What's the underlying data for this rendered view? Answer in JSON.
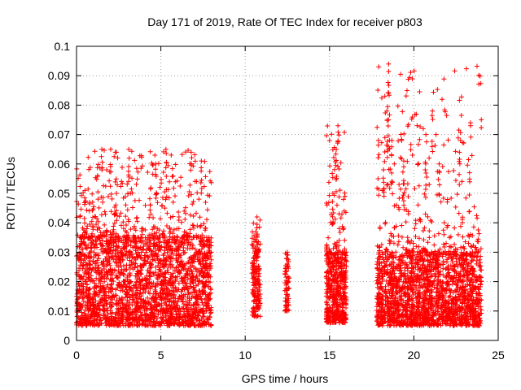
{
  "chart_data": {
    "type": "scatter",
    "title": "Day 171 of 2019, Rate Of TEC Index for receiver p803",
    "xlabel": "GPS time / hours",
    "ylabel": "ROTI / TECUs",
    "xlim": [
      0,
      25
    ],
    "ylim": [
      0,
      0.1
    ],
    "xticks": [
      "0",
      "5",
      "10",
      "15",
      "20",
      "25"
    ],
    "yticks": [
      "0",
      "0.01",
      "0.02",
      "0.03",
      "0.04",
      "0.05",
      "0.06",
      "0.07",
      "0.08",
      "0.09",
      "0.1"
    ],
    "grid": true,
    "legend": "none",
    "marker": "plus",
    "color": "#ff0000",
    "series": [
      {
        "clusters": [
          {
            "x_range": [
              0.0,
              8.0
            ],
            "y_typical": [
              0.005,
              0.035
            ],
            "y_max": 0.065,
            "points": 2600
          },
          {
            "x_range": [
              10.4,
              10.9
            ],
            "y_typical": [
              0.008,
              0.03
            ],
            "y_max": 0.042,
            "points": 170
          },
          {
            "x_range": [
              12.35,
              12.6
            ],
            "y_typical": [
              0.01,
              0.025
            ],
            "y_max": 0.03,
            "points": 70
          },
          {
            "x_range": [
              14.8,
              16.0
            ],
            "y_typical": [
              0.006,
              0.03
            ],
            "y_max": 0.073,
            "points": 520
          },
          {
            "x_range": [
              17.8,
              24.0
            ],
            "y_typical": [
              0.005,
              0.03
            ],
            "y_max": 0.094,
            "points": 2100
          }
        ],
        "peaks": [
          {
            "x": 1.5,
            "y": 0.065
          },
          {
            "x": 3.1,
            "y": 0.065
          },
          {
            "x": 5.3,
            "y": 0.065
          },
          {
            "x": 6.8,
            "y": 0.064
          },
          {
            "x": 7.4,
            "y": 0.061
          },
          {
            "x": 0.5,
            "y": 0.051
          },
          {
            "x": 4.7,
            "y": 0.06
          },
          {
            "x": 10.7,
            "y": 0.042
          },
          {
            "x": 12.5,
            "y": 0.03
          },
          {
            "x": 15.2,
            "y": 0.05
          },
          {
            "x": 15.5,
            "y": 0.073
          },
          {
            "x": 15.4,
            "y": 0.065
          },
          {
            "x": 18.5,
            "y": 0.094
          },
          {
            "x": 18.4,
            "y": 0.078
          },
          {
            "x": 18.5,
            "y": 0.075
          },
          {
            "x": 18.7,
            "y": 0.068
          },
          {
            "x": 17.9,
            "y": 0.068
          },
          {
            "x": 19.4,
            "y": 0.061
          },
          {
            "x": 21.1,
            "y": 0.078
          },
          {
            "x": 21.5,
            "y": 0.06
          },
          {
            "x": 22.7,
            "y": 0.064
          },
          {
            "x": 23.3,
            "y": 0.057
          },
          {
            "x": 20.7,
            "y": 0.06
          },
          {
            "x": 18.2,
            "y": 0.058
          }
        ]
      }
    ]
  }
}
